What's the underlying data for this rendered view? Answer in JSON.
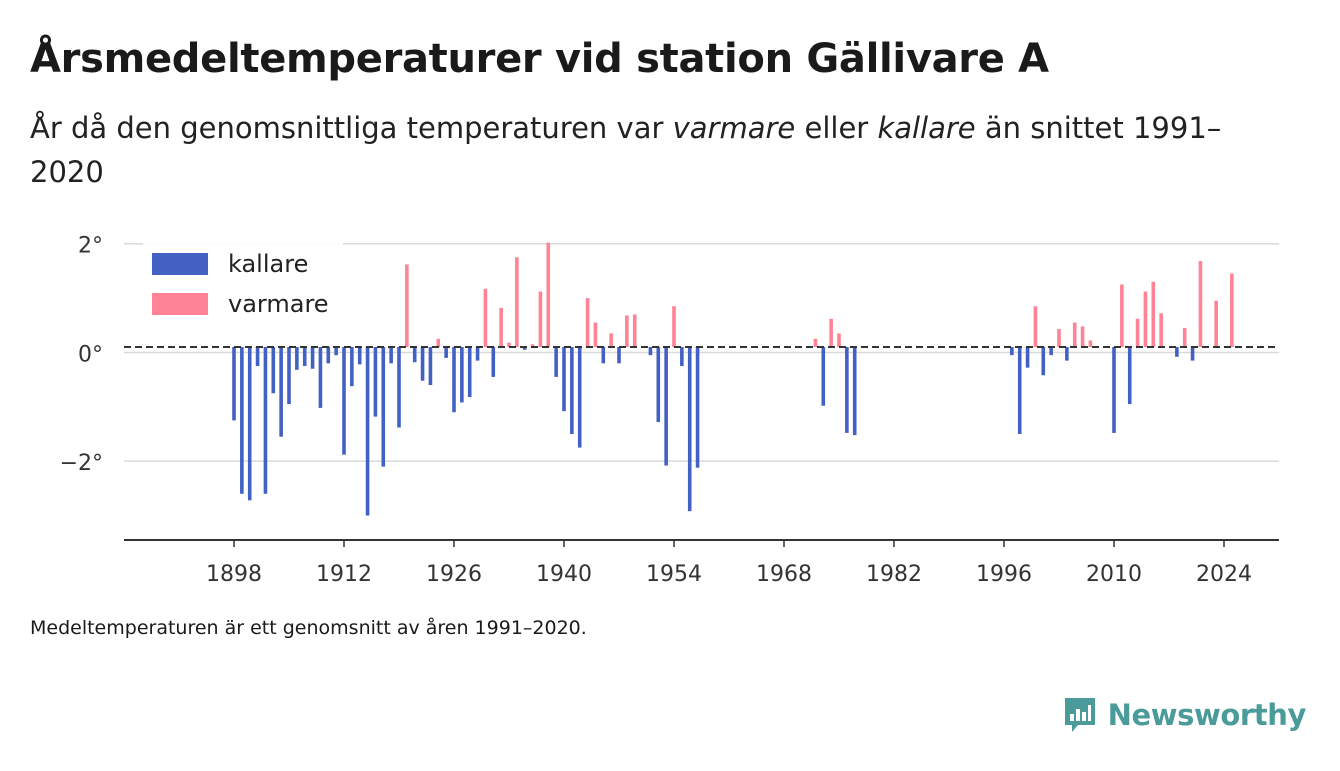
{
  "title": "Årsmedeltemperaturer vid station Gällivare A",
  "subtitle": {
    "part1": "År då den genomsnittliga temperaturen var ",
    "warm_word": "varmare",
    "part2": " eller ",
    "cold_word": "kallare",
    "part3": " än snittet 1991–2020"
  },
  "note": "Medeltemperaturen är ett genomsnitt av åren 1991–2020.",
  "brand": {
    "name": "Newsworthy",
    "icon": "newsworthy-logo-icon",
    "color": "#4a9b9a"
  },
  "colors": {
    "cold": "#4361c2",
    "warm": "#ff8395",
    "grid": "#d9d9d9",
    "zero": "#333333",
    "axis": "#333333"
  },
  "chart_data": {
    "type": "bar",
    "ylim": [
      -3.45,
      2.05
    ],
    "xlim": [
      1884,
      2031
    ],
    "baseline": 0.1,
    "y_ticks": [
      {
        "value": 2,
        "label": "2°"
      },
      {
        "value": 0,
        "label": "0°"
      },
      {
        "value": -2,
        "label": "−2°"
      }
    ],
    "x_ticks": [
      1898,
      1912,
      1926,
      1940,
      1954,
      1968,
      1982,
      1996,
      2010,
      2024
    ],
    "legend": {
      "position": "top-left",
      "entries": [
        {
          "label": "kallare",
          "color": "#4361c2"
        },
        {
          "label": "varmare",
          "color": "#ff8395"
        }
      ]
    },
    "series": [
      {
        "name": "kallare",
        "color": "#4361c2",
        "points": [
          {
            "x": 1898,
            "y": -1.25
          },
          {
            "x": 1899,
            "y": -2.6
          },
          {
            "x": 1900,
            "y": -2.72
          },
          {
            "x": 1901,
            "y": -0.25
          },
          {
            "x": 1902,
            "y": -2.6
          },
          {
            "x": 1903,
            "y": -0.75
          },
          {
            "x": 1904,
            "y": -1.55
          },
          {
            "x": 1905,
            "y": -0.95
          },
          {
            "x": 1906,
            "y": -0.32
          },
          {
            "x": 1907,
            "y": -0.25
          },
          {
            "x": 1908,
            "y": -0.3
          },
          {
            "x": 1909,
            "y": -1.02
          },
          {
            "x": 1910,
            "y": -0.2
          },
          {
            "x": 1911,
            "y": -0.05
          },
          {
            "x": 1912,
            "y": -1.88
          },
          {
            "x": 1913,
            "y": -0.62
          },
          {
            "x": 1914,
            "y": -0.22
          },
          {
            "x": 1915,
            "y": -3.0
          },
          {
            "x": 1916,
            "y": -1.18
          },
          {
            "x": 1917,
            "y": -2.1
          },
          {
            "x": 1918,
            "y": -0.2
          },
          {
            "x": 1919,
            "y": -1.38
          },
          {
            "x": 1921,
            "y": -0.18
          },
          {
            "x": 1922,
            "y": -0.52
          },
          {
            "x": 1923,
            "y": -0.6
          },
          {
            "x": 1925,
            "y": -0.1
          },
          {
            "x": 1926,
            "y": -1.1
          },
          {
            "x": 1927,
            "y": -0.92
          },
          {
            "x": 1928,
            "y": -0.82
          },
          {
            "x": 1929,
            "y": -0.15
          },
          {
            "x": 1931,
            "y": -0.45
          },
          {
            "x": 1935,
            "y": 0.05
          },
          {
            "x": 1939,
            "y": -0.45
          },
          {
            "x": 1940,
            "y": -1.08
          },
          {
            "x": 1941,
            "y": -1.5
          },
          {
            "x": 1942,
            "y": -1.75
          },
          {
            "x": 1945,
            "y": -0.2
          },
          {
            "x": 1947,
            "y": -0.2
          },
          {
            "x": 1951,
            "y": -0.05
          },
          {
            "x": 1952,
            "y": -1.28
          },
          {
            "x": 1953,
            "y": -2.08
          },
          {
            "x": 1955,
            "y": -0.25
          },
          {
            "x": 1956,
            "y": -2.92
          },
          {
            "x": 1957,
            "y": -2.12
          },
          {
            "x": 1973,
            "y": -0.98
          },
          {
            "x": 1976,
            "y": -1.48
          },
          {
            "x": 1977,
            "y": -1.52
          },
          {
            "x": 1997,
            "y": -0.05
          },
          {
            "x": 1998,
            "y": -1.5
          },
          {
            "x": 1999,
            "y": -0.28
          },
          {
            "x": 2001,
            "y": -0.42
          },
          {
            "x": 2002,
            "y": -0.05
          },
          {
            "x": 2004,
            "y": -0.15
          },
          {
            "x": 2010,
            "y": -1.48
          },
          {
            "x": 2012,
            "y": -0.95
          },
          {
            "x": 2018,
            "y": -0.08
          },
          {
            "x": 2020,
            "y": -0.15
          }
        ]
      },
      {
        "name": "varmare",
        "color": "#ff8395",
        "points": [
          {
            "x": 1920,
            "y": 1.62
          },
          {
            "x": 1924,
            "y": 0.25
          },
          {
            "x": 1930,
            "y": 1.17
          },
          {
            "x": 1932,
            "y": 0.82
          },
          {
            "x": 1933,
            "y": 0.18
          },
          {
            "x": 1934,
            "y": 1.75
          },
          {
            "x": 1936,
            "y": 0.15
          },
          {
            "x": 1937,
            "y": 1.12
          },
          {
            "x": 1938,
            "y": 2.02
          },
          {
            "x": 1943,
            "y": 1.0
          },
          {
            "x": 1944,
            "y": 0.55
          },
          {
            "x": 1946,
            "y": 0.35
          },
          {
            "x": 1948,
            "y": 0.68
          },
          {
            "x": 1949,
            "y": 0.7
          },
          {
            "x": 1954,
            "y": 0.85
          },
          {
            "x": 1972,
            "y": 0.25
          },
          {
            "x": 1974,
            "y": 0.62
          },
          {
            "x": 1975,
            "y": 0.35
          },
          {
            "x": 2000,
            "y": 0.85
          },
          {
            "x": 2003,
            "y": 0.43
          },
          {
            "x": 2005,
            "y": 0.55
          },
          {
            "x": 2006,
            "y": 0.48
          },
          {
            "x": 2007,
            "y": 0.22
          },
          {
            "x": 2011,
            "y": 1.25
          },
          {
            "x": 2013,
            "y": 0.62
          },
          {
            "x": 2014,
            "y": 1.12
          },
          {
            "x": 2015,
            "y": 1.3
          },
          {
            "x": 2016,
            "y": 0.72
          },
          {
            "x": 2019,
            "y": 0.45
          },
          {
            "x": 2021,
            "y": 1.68
          },
          {
            "x": 2023,
            "y": 0.95
          },
          {
            "x": 2025,
            "y": 1.45
          }
        ]
      }
    ]
  }
}
